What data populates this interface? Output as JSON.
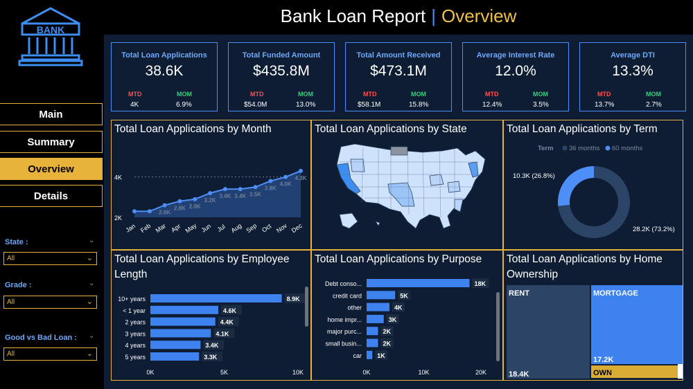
{
  "header": {
    "title": "Bank Loan Report",
    "separator": "|",
    "subtitle": "Overview"
  },
  "logo": {
    "text": "BANK",
    "icon": "bank-icon"
  },
  "nav": {
    "items": [
      "Main",
      "Summary",
      "Overview",
      "Details"
    ],
    "active": "Overview"
  },
  "filters": [
    {
      "label": "State :",
      "value": "All"
    },
    {
      "label": "Grade :",
      "value": "All"
    },
    {
      "label": "Good vs Bad Loan :",
      "value": "All"
    }
  ],
  "kpis": [
    {
      "title": "Total Loan Applications",
      "value": "38.6K",
      "mtd_label": "MTD",
      "mtd": "4K",
      "mom_label": "MOM",
      "mom": "6.9%"
    },
    {
      "title": "Total Funded Amount",
      "value": "$435.8M",
      "mtd_label": "MTD",
      "mtd": "$54.0M",
      "mom_label": "MOM",
      "mom": "13.0%"
    },
    {
      "title": "Total Amount Received",
      "value": "$473.1M",
      "mtd_label": "MTD",
      "mtd": "$58.1M",
      "mom_label": "MOM",
      "mom": "15.8%"
    },
    {
      "title": "Average Interest Rate",
      "value": "12.0%",
      "mtd_label": "MTD",
      "mtd": "12.4%",
      "mom_label": "MOM",
      "mom": "3.5%"
    },
    {
      "title": "Average DTI",
      "value": "13.3%",
      "mtd_label": "MTD",
      "mtd": "13.7%",
      "mom_label": "MOM",
      "mom": "2.7%"
    }
  ],
  "panels": {
    "month": "Total Loan Applications by Month",
    "state": "Total Loan Applications by State",
    "term": "Total Loan Applications by Term",
    "emp": "Total Loan Applications by Employee Length",
    "purpose": "Total Loan Applications by Purpose",
    "home": "Total Loan Applications by Home Ownership"
  },
  "colors": {
    "accent": "#e8b33a",
    "blue": "#4d8ff7",
    "panel": "#0e1d33",
    "mtd": "#ff4d4d",
    "mom": "#33d17a"
  },
  "chart_data": [
    {
      "type": "area",
      "categories": [
        "Jan",
        "Feb",
        "Mar",
        "Apr",
        "May",
        "Jun",
        "Jul",
        "Aug",
        "Sep",
        "Oct",
        "Nov",
        "Dec"
      ],
      "values": [
        2.3,
        2.3,
        2.6,
        2.8,
        2.9,
        3.2,
        3.4,
        3.4,
        3.5,
        3.8,
        4.0,
        4.3
      ],
      "labels": [
        "",
        "",
        "2.6K",
        "2.8K",
        "2.9K",
        "3.2K",
        "3.4K",
        "3.4K",
        "3.5K",
        "3.8K",
        "4.0K",
        "4.3K"
      ],
      "yticks": [
        "4K",
        "2K"
      ],
      "ylim": [
        2.0,
        4.4
      ]
    },
    {
      "type": "pie",
      "legend_title": "Term",
      "series": [
        {
          "name": "36 months",
          "value": 28.2,
          "label": "28.2K (73.2%)",
          "color": "#2c4566"
        },
        {
          "name": "60 months",
          "value": 10.3,
          "label": "10.3K (26.8%)",
          "color": "#4d8ff7"
        }
      ]
    },
    {
      "type": "bar",
      "categories": [
        "10+ years",
        "< 1 year",
        "2 years",
        "3 years",
        "4 years",
        "5 years"
      ],
      "values": [
        8.9,
        4.6,
        4.4,
        4.1,
        3.4,
        3.3
      ],
      "labels": [
        "8.9K",
        "4.6K",
        "4.4K",
        "4.1K",
        "3.4K",
        "3.3K"
      ],
      "xticks": [
        "0K",
        "5K",
        "10K"
      ],
      "xlim": [
        0,
        10
      ]
    },
    {
      "type": "bar",
      "categories": [
        "Debt conso...",
        "credit card",
        "other",
        "home impr...",
        "major purc...",
        "small busin...",
        "car"
      ],
      "values": [
        18,
        5,
        4,
        3,
        2,
        2,
        1
      ],
      "labels": [
        "18K",
        "5K",
        "4K",
        "3K",
        "2K",
        "2K",
        "1K"
      ],
      "xticks": [
        "0K",
        "10K",
        "20K"
      ],
      "xlim": [
        0,
        20
      ]
    },
    {
      "type": "heatmap",
      "series": [
        {
          "name": "RENT",
          "label": "18.4K"
        },
        {
          "name": "MORTGAGE",
          "label": "17.2K"
        },
        {
          "name": "OWN",
          "label": ""
        }
      ]
    }
  ]
}
